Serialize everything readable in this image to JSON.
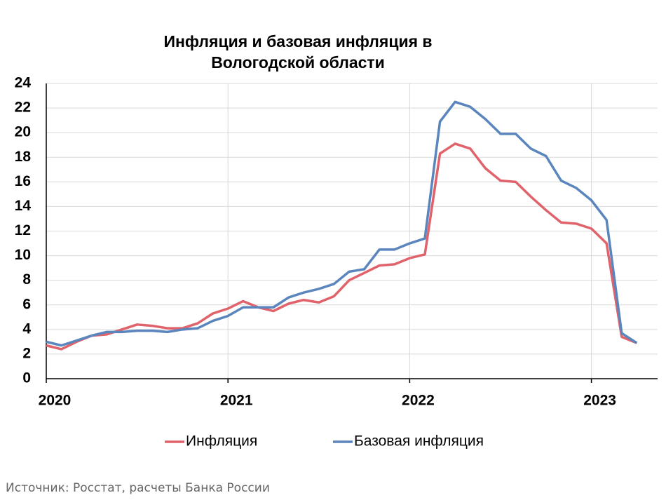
{
  "chart_data": {
    "type": "line",
    "title": "Инфляция и базовая инфляция в Вологодской области",
    "source": "Источник: Росстат, расчеты Банка России",
    "categories": [
      "2020",
      null,
      null,
      null,
      null,
      null,
      null,
      null,
      null,
      null,
      null,
      null,
      "2021",
      null,
      null,
      null,
      null,
      null,
      null,
      null,
      null,
      null,
      null,
      null,
      "2022",
      null,
      null,
      null,
      null,
      null,
      null,
      null,
      null,
      null,
      null,
      null,
      "2023",
      null,
      null,
      null
    ],
    "ylim": [
      0,
      24
    ],
    "yticks": [
      0,
      2,
      4,
      6,
      8,
      10,
      12,
      14,
      16,
      18,
      20,
      22,
      24
    ],
    "grid": true,
    "legend": "bottom",
    "series": [
      {
        "name": "Инфляция",
        "color": "#e0636b",
        "values": [
          2.7,
          2.4,
          3.0,
          3.5,
          3.6,
          4.0,
          4.4,
          4.3,
          4.1,
          4.1,
          4.5,
          5.3,
          5.7,
          6.3,
          5.8,
          5.5,
          6.1,
          6.4,
          6.2,
          6.7,
          8.0,
          8.6,
          9.2,
          9.3,
          9.8,
          10.1,
          18.3,
          19.1,
          18.7,
          17.1,
          16.1,
          16.0,
          14.8,
          13.7,
          12.7,
          12.6,
          12.2,
          11.0,
          3.4,
          2.9
        ]
      },
      {
        "name": "Базовая инфляция",
        "color": "#5b86bd",
        "values": [
          3.0,
          2.7,
          3.1,
          3.5,
          3.8,
          3.8,
          3.9,
          3.9,
          3.8,
          4.0,
          4.1,
          4.7,
          5.1,
          5.8,
          5.8,
          5.8,
          6.6,
          7.0,
          7.3,
          7.7,
          8.7,
          8.9,
          10.5,
          10.5,
          11.0,
          11.4,
          20.9,
          22.5,
          22.1,
          21.1,
          19.9,
          19.9,
          18.7,
          18.1,
          16.1,
          15.5,
          14.5,
          12.9,
          3.7,
          2.9
        ]
      }
    ]
  }
}
